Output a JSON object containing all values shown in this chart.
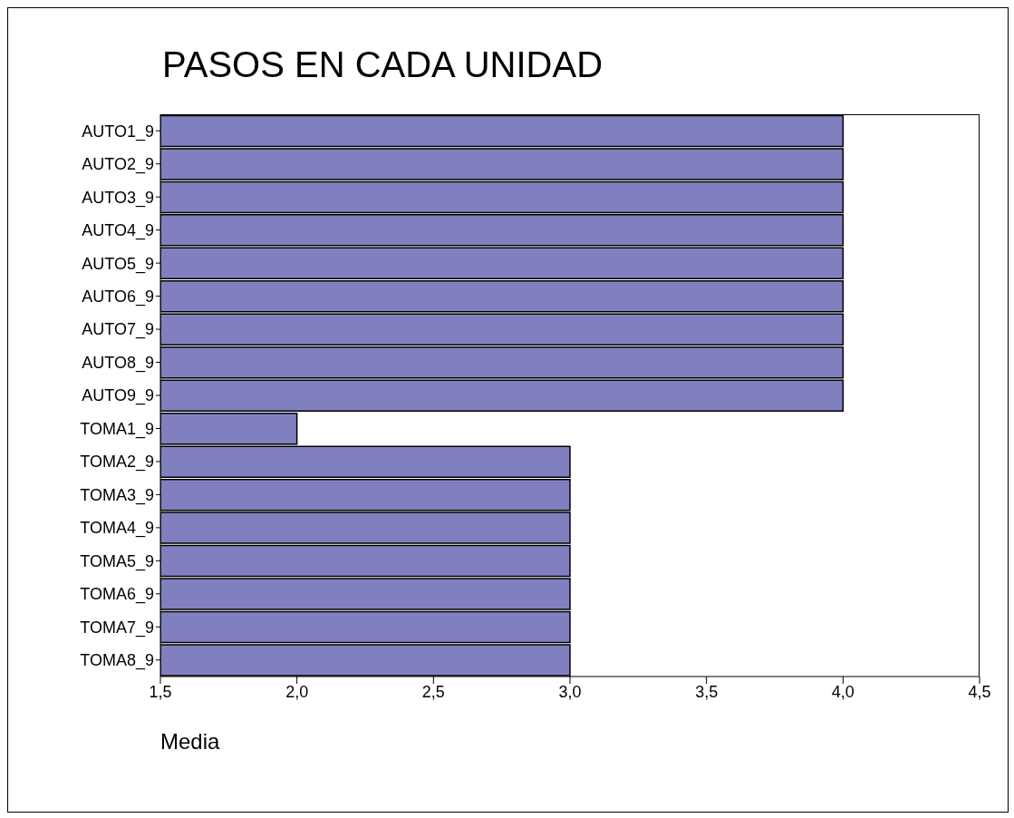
{
  "chart_data": {
    "type": "bar",
    "orientation": "horizontal",
    "title": "PASOS EN CADA UNIDAD",
    "xlabel": "Media",
    "categories": [
      "AUTO1_9",
      "AUTO2_9",
      "AUTO3_9",
      "AUTO4_9",
      "AUTO5_9",
      "AUTO6_9",
      "AUTO7_9",
      "AUTO8_9",
      "AUTO9_9",
      "TOMA1_9",
      "TOMA2_9",
      "TOMA3_9",
      "TOMA4_9",
      "TOMA5_9",
      "TOMA6_9",
      "TOMA7_9",
      "TOMA8_9"
    ],
    "values": [
      4.0,
      4.0,
      4.0,
      4.0,
      4.0,
      4.0,
      4.0,
      4.0,
      4.0,
      2.0,
      3.0,
      3.0,
      3.0,
      3.0,
      3.0,
      3.0,
      3.0
    ],
    "color": "#8080c0",
    "xlim": [
      1.5,
      4.5
    ],
    "xticks": [
      {
        "value": 1.5,
        "label": "1,5"
      },
      {
        "value": 2.0,
        "label": "2,0"
      },
      {
        "value": 2.5,
        "label": "2,5"
      },
      {
        "value": 3.0,
        "label": "3,0"
      },
      {
        "value": 3.5,
        "label": "3,5"
      },
      {
        "value": 4.0,
        "label": "4,0"
      },
      {
        "value": 4.5,
        "label": "4,5"
      }
    ],
    "grid": false,
    "legend": false
  }
}
